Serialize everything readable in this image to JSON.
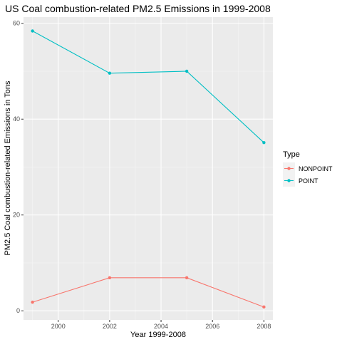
{
  "chart_data": {
    "type": "line",
    "title": "US Coal combustion-related PM2.5 Emissions in 1999-2008",
    "xlabel": "Year 1999-2008",
    "ylabel": "PM2.5 Coal combustion-related Emissions in Tons",
    "x": [
      1999,
      2002,
      2005,
      2008
    ],
    "xlim": [
      1998.65,
      2008.35
    ],
    "ylim": [
      -1.9,
      61.3
    ],
    "xticks": [
      2000,
      2002,
      2004,
      2006,
      2008
    ],
    "yticks": [
      0,
      20,
      40,
      60
    ],
    "grid": true,
    "legend": {
      "title": "Type",
      "position": "right"
    },
    "series": [
      {
        "name": "NONPOINT",
        "color": "#F8766D",
        "values": [
          1.8,
          6.9,
          6.9,
          0.8
        ]
      },
      {
        "name": "POINT",
        "color": "#00BFC4",
        "values": [
          58.4,
          49.6,
          50.0,
          35.1
        ]
      }
    ]
  },
  "colors": {
    "panel": "#EBEBEB",
    "grid_major": "#FFFFFF",
    "grid_minor": "#F5F5F5"
  }
}
